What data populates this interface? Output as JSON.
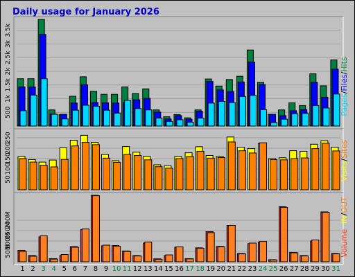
{
  "title": "Daily usage for January 2026",
  "colors": {
    "pages": "#00d8ff",
    "files": "#0000ff",
    "hits": "#008040",
    "visits": "#ffff00",
    "sites": "#ff8000",
    "kbin": "#ff3010",
    "kbout": "#ff8020",
    "volume": "#ff3010",
    "weekend_day": "#008040",
    "panel_bg": "#c0c0c0",
    "title": "#0000cc"
  },
  "chart_data": [
    {
      "type": "bar",
      "panel": "hits",
      "categories": [
        "1",
        "2",
        "3",
        "4",
        "5",
        "6",
        "7",
        "8",
        "9",
        "10",
        "11",
        "12",
        "13",
        "14",
        "15",
        "16",
        "17",
        "18",
        "19",
        "20",
        "21",
        "22",
        "23",
        "24",
        "25",
        "26",
        "27",
        "28",
        "29",
        "30",
        "31"
      ],
      "weekend_days": [
        "3",
        "4",
        "10",
        "11",
        "17",
        "18",
        "24",
        "25",
        "31"
      ],
      "yticks": [
        "500",
        "1k",
        "1.5k",
        "2k",
        "2.5k",
        "3k",
        "3.5k"
      ],
      "ylim": [
        0,
        3900
      ],
      "legend": {
        "pages": "Pages",
        "files": "Files",
        "hits": "Hits",
        "sep": "/"
      },
      "series": [
        {
          "name": "Hits",
          "values": [
            1730,
            1730,
            3900,
            590,
            420,
            1090,
            1800,
            1270,
            1160,
            1160,
            1430,
            1190,
            1360,
            590,
            340,
            420,
            300,
            590,
            1720,
            1460,
            1700,
            1820,
            2780,
            1600,
            430,
            590,
            850,
            750,
            1910,
            1470,
            2420
          ]
        },
        {
          "name": "Files",
          "values": [
            1430,
            1430,
            3350,
            440,
            430,
            840,
            1510,
            860,
            850,
            840,
            860,
            960,
            1010,
            510,
            260,
            380,
            250,
            540,
            1630,
            1320,
            1260,
            1610,
            2340,
            1520,
            430,
            380,
            560,
            600,
            1600,
            1050,
            2080
          ]
        },
        {
          "name": "Pages",
          "values": [
            560,
            1130,
            1730,
            430,
            260,
            580,
            760,
            720,
            580,
            470,
            940,
            640,
            590,
            290,
            170,
            230,
            140,
            290,
            840,
            900,
            860,
            1080,
            1120,
            600,
            130,
            250,
            450,
            460,
            750,
            660,
            1170
          ]
        }
      ]
    },
    {
      "type": "bar",
      "panel": "visits",
      "categories": [
        "1",
        "2",
        "3",
        "4",
        "5",
        "6",
        "7",
        "8",
        "9",
        "10",
        "11",
        "12",
        "13",
        "14",
        "15",
        "16",
        "17",
        "18",
        "19",
        "20",
        "21",
        "22",
        "23",
        "24",
        "25",
        "26",
        "27",
        "28",
        "29",
        "30",
        "31"
      ],
      "yticks": [
        "50",
        "100",
        "150",
        "200",
        "250"
      ],
      "ylim": [
        0,
        280
      ],
      "legend": {
        "visits": "Visits",
        "sites": "Sites",
        "sep": "/"
      },
      "series": [
        {
          "name": "Visits",
          "values": [
            160,
            145,
            133,
            143,
            202,
            238,
            262,
            228,
            170,
            140,
            208,
            181,
            161,
            120,
            115,
            160,
            178,
            207,
            165,
            160,
            254,
            205,
            198,
            223,
            150,
            154,
            188,
            185,
            219,
            236,
            205
          ]
        },
        {
          "name": "Sites",
          "values": [
            150,
            133,
            118,
            110,
            146,
            211,
            228,
            217,
            152,
            132,
            170,
            165,
            144,
            111,
            104,
            150,
            160,
            185,
            152,
            155,
            230,
            188,
            177,
            226,
            145,
            144,
            150,
            153,
            198,
            224,
            187
          ]
        }
      ]
    },
    {
      "type": "bar",
      "panel": "volume",
      "categories": [
        "1",
        "2",
        "3",
        "4",
        "5",
        "6",
        "7",
        "8",
        "9",
        "10",
        "11",
        "12",
        "13",
        "14",
        "15",
        "16",
        "17",
        "18",
        "19",
        "20",
        "21",
        "22",
        "23",
        "24",
        "25",
        "26",
        "27",
        "28",
        "29",
        "30",
        "31"
      ],
      "yticks": [
        "50M",
        "100M",
        "150M",
        "200M"
      ],
      "ylim": [
        0,
        320
      ],
      "legend": {
        "volume": "Volume",
        "in": "IN",
        "out": "OUT",
        "sep": "/"
      },
      "series": [
        {
          "name": "IN",
          "values": [
            55,
            30,
            120,
            15,
            30,
            73,
            155,
            320,
            77,
            78,
            52,
            30,
            90,
            14,
            30,
            70,
            15,
            67,
            145,
            74,
            175,
            40,
            87,
            95,
            10,
            265,
            45,
            30,
            100,
            240,
            40
          ]
        },
        {
          "name": "OUT",
          "values": [
            50,
            27,
            125,
            13,
            35,
            70,
            158,
            318,
            80,
            75,
            50,
            28,
            95,
            12,
            33,
            72,
            14,
            65,
            140,
            72,
            175,
            38,
            90,
            98,
            9,
            262,
            43,
            28,
            105,
            238,
            38
          ]
        }
      ]
    }
  ]
}
